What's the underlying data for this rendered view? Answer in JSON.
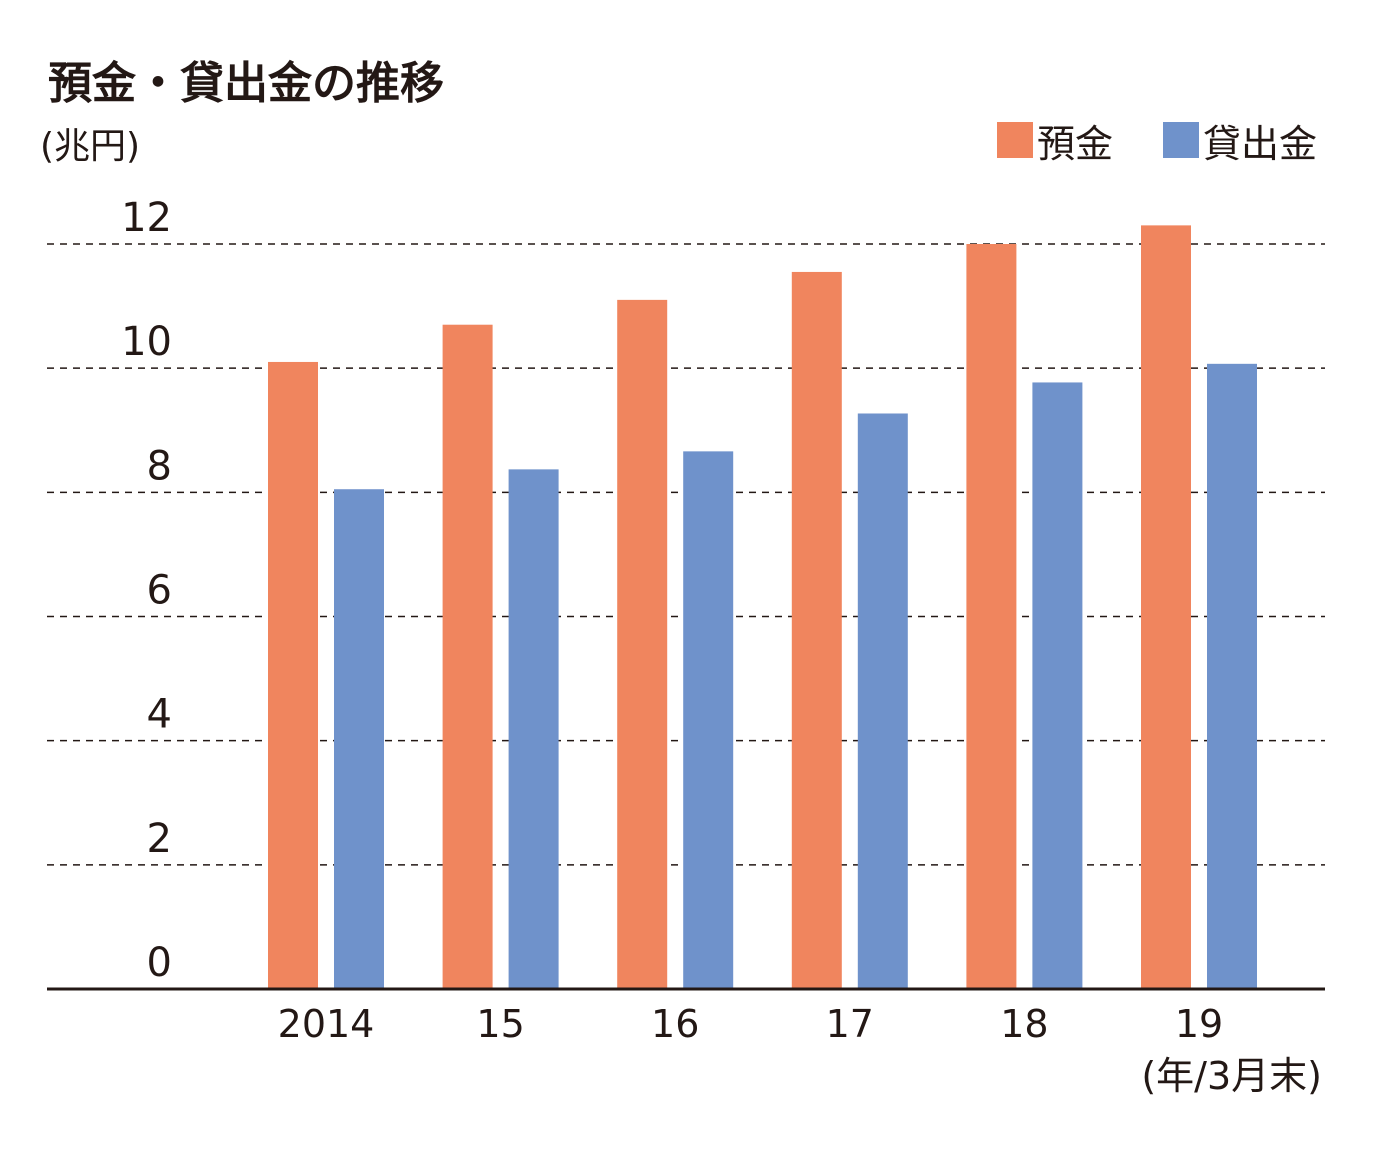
{
  "chart_data": {
    "type": "bar",
    "title": "預金・貸出金の推移",
    "ylabel": "(兆円)",
    "xlabel": "(年/3月末)",
    "categories": [
      "2014",
      "15",
      "16",
      "17",
      "18",
      "19"
    ],
    "series": [
      {
        "name": "預金",
        "color": "#f0855e",
        "values": [
          10.1,
          10.7,
          11.1,
          11.55,
          12.0,
          12.3
        ]
      },
      {
        "name": "貸出金",
        "color": "#6f92cb",
        "values": [
          8.05,
          8.37,
          8.66,
          9.27,
          9.77,
          10.07
        ]
      }
    ],
    "ylim": [
      0,
      12
    ],
    "yticks": [
      0,
      2,
      4,
      6,
      8,
      10,
      12
    ],
    "grid": true,
    "legend_position": "top-right"
  }
}
